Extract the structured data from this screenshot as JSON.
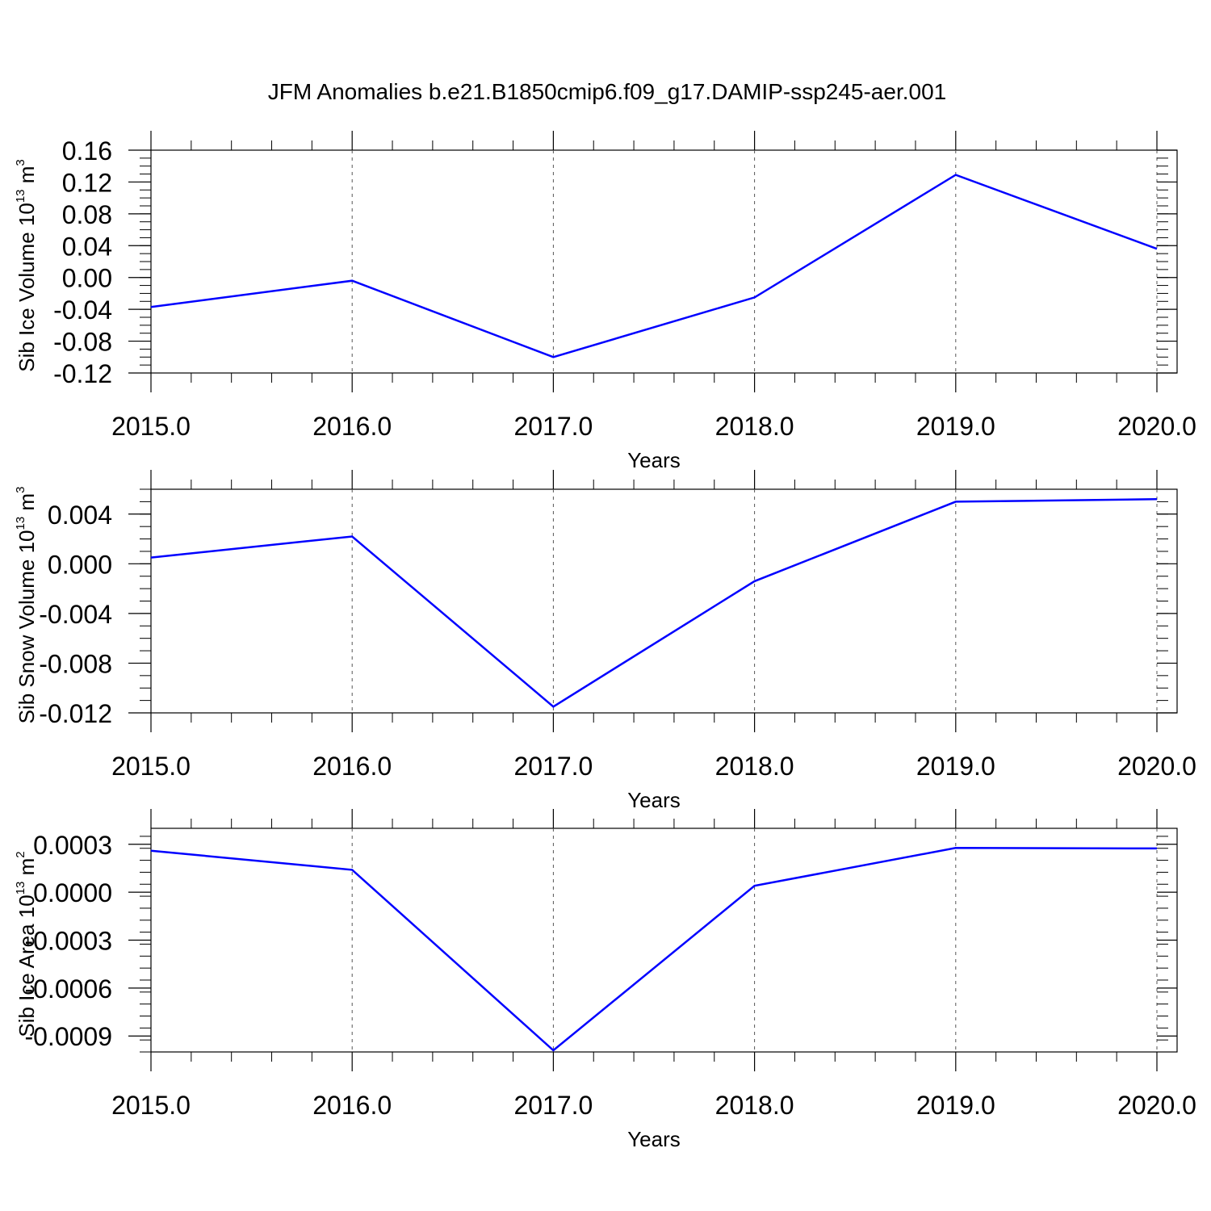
{
  "figure": {
    "title": "JFM Anomalies b.e21.B1850cmip6.f09_g17.DAMIP-ssp245-aer.001"
  },
  "chart_data": [
    {
      "type": "line",
      "xlabel": "Years",
      "ylabel": {
        "text": "Sib Ice Volume 10",
        "sup": "13",
        "unit": " m",
        "unit_sup": "3"
      },
      "xlim": [
        2015,
        2020
      ],
      "ylim": [
        -0.12,
        0.16
      ],
      "x_ticks": [
        "2015.0",
        "2016.0",
        "2017.0",
        "2018.0",
        "2019.0",
        "2020.0"
      ],
      "y_ticks": [
        "-0.12",
        "-0.08",
        "-0.04",
        "0.00",
        "0.04",
        "0.08",
        "0.12",
        "0.16"
      ],
      "y_tick_values": [
        -0.12,
        -0.08,
        -0.04,
        0.0,
        0.04,
        0.08,
        0.12,
        0.16
      ],
      "grid": "vertical dashed",
      "series": [
        {
          "color": "#0000ff",
          "x": [
            2015,
            2016,
            2017,
            2018,
            2019,
            2020
          ],
          "values": [
            -0.037,
            -0.004,
            -0.1,
            -0.025,
            0.129,
            0.036
          ]
        }
      ]
    },
    {
      "type": "line",
      "xlabel": "Years",
      "ylabel": {
        "text": "Sib Snow Volume 10",
        "sup": "13",
        "unit": " m",
        "unit_sup": "3"
      },
      "xlim": [
        2015,
        2020
      ],
      "ylim": [
        -0.012,
        0.006
      ],
      "x_ticks": [
        "2015.0",
        "2016.0",
        "2017.0",
        "2018.0",
        "2019.0",
        "2020.0"
      ],
      "y_ticks": [
        "-0.012",
        "-0.008",
        "-0.004",
        "0.000",
        "0.004"
      ],
      "y_tick_values": [
        -0.012,
        -0.008,
        -0.004,
        0.0,
        0.004
      ],
      "grid": "vertical dashed",
      "series": [
        {
          "color": "#0000ff",
          "x": [
            2015,
            2016,
            2017,
            2018,
            2019,
            2020
          ],
          "values": [
            0.0005,
            0.0022,
            -0.0115,
            -0.0014,
            0.005,
            0.0052
          ]
        }
      ]
    },
    {
      "type": "line",
      "xlabel": "Years",
      "ylabel": {
        "text": "Sib Ice Area 10",
        "sup": "13",
        "unit": " m",
        "unit_sup": "2"
      },
      "xlim": [
        2015,
        2020
      ],
      "ylim": [
        -0.001,
        0.0004
      ],
      "x_ticks": [
        "2015.0",
        "2016.0",
        "2017.0",
        "2018.0",
        "2019.0",
        "2020.0"
      ],
      "y_ticks": [
        "-0.0009",
        "-0.0006",
        "-0.0003",
        "0.0000",
        "0.0003"
      ],
      "y_tick_values": [
        -0.0009,
        -0.0006,
        -0.0003,
        0.0,
        0.0003
      ],
      "grid": "vertical dashed",
      "series": [
        {
          "color": "#0000ff",
          "x": [
            2015,
            2016,
            2017,
            2018,
            2019,
            2020
          ],
          "values": [
            0.00026,
            0.00014,
            -0.00099,
            4e-05,
            0.000277,
            0.000274
          ]
        }
      ]
    }
  ]
}
